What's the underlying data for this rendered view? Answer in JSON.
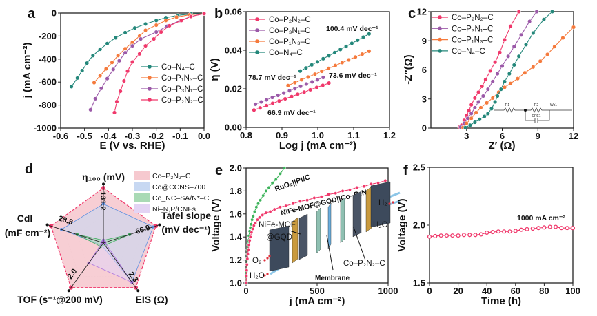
{
  "figure": {
    "panel_labels": [
      "a",
      "b",
      "c",
      "d",
      "e",
      "f"
    ]
  },
  "colors": {
    "Co–P₂N₂–C": "#f0386b",
    "Co–P₃N₁–C": "#9b59a8",
    "Co–P₁N₃–C": "#f57a3c",
    "Co–N₄–C": "#23877a",
    "RuO₂||Pt/C": "#3cb35a"
  },
  "chart_data": [
    {
      "type": "line",
      "xlabel": "E (V vs. RHE)",
      "ylabel": "j (mA cm⁻²)",
      "xlim": [
        -0.6,
        0.0
      ],
      "ylim": [
        -1000,
        0
      ],
      "xticks": [
        -0.6,
        -0.5,
        -0.4,
        -0.3,
        -0.2,
        -0.1,
        0.0
      ],
      "xtick_labels": [
        "-0.6",
        "-0.5",
        "-0.4",
        "-0.3",
        "-0.2",
        "-0.1",
        "0.0"
      ],
      "yticks": [
        -1000,
        -800,
        -600,
        -400,
        -200,
        0
      ],
      "ytick_labels": [
        "-1000",
        "-800",
        "-600",
        "-400",
        "-200",
        "0"
      ],
      "legend": "right",
      "series": [
        {
          "name": "Co–N₄–C",
          "color": "#23877a",
          "x": [
            -0.555,
            -0.53,
            -0.51,
            -0.49,
            -0.465,
            -0.435,
            -0.405,
            -0.37,
            -0.33,
            -0.29,
            -0.245,
            -0.2,
            -0.16,
            -0.11,
            -0.055,
            0
          ],
          "y": [
            -640,
            -565,
            -500,
            -435,
            -370,
            -315,
            -265,
            -215,
            -170,
            -130,
            -95,
            -65,
            -40,
            -20,
            -8,
            -5
          ]
        },
        {
          "name": "Co–P₁N₃–C",
          "color": "#f57a3c",
          "x": [
            -0.46,
            -0.435,
            -0.41,
            -0.385,
            -0.36,
            -0.33,
            -0.3,
            -0.27,
            -0.245,
            -0.2,
            -0.16,
            -0.115,
            -0.06,
            0
          ],
          "y": [
            -605,
            -545,
            -485,
            -430,
            -370,
            -310,
            -255,
            -200,
            -150,
            -105,
            -65,
            -35,
            -15,
            -5
          ]
        },
        {
          "name": "Co–P₃N₁–C",
          "color": "#9b59a8",
          "x": [
            -0.475,
            -0.455,
            -0.43,
            -0.405,
            -0.38,
            -0.355,
            -0.33,
            -0.3,
            -0.265,
            -0.2,
            -0.155,
            -0.1,
            -0.055,
            0
          ],
          "y": [
            -840,
            -745,
            -655,
            -570,
            -490,
            -415,
            -345,
            -285,
            -225,
            -165,
            -115,
            -65,
            -30,
            -5
          ]
        },
        {
          "name": "Co–P₂N₂–C",
          "color": "#f0386b",
          "x": [
            -0.375,
            -0.365,
            -0.35,
            -0.335,
            -0.32,
            -0.3,
            -0.27,
            -0.245,
            -0.21,
            -0.18,
            -0.145,
            -0.095,
            -0.055,
            0
          ],
          "y": [
            -865,
            -770,
            -680,
            -590,
            -505,
            -425,
            -355,
            -285,
            -225,
            -165,
            -110,
            -65,
            -30,
            -5
          ]
        }
      ]
    },
    {
      "type": "line",
      "xlabel": "Log j (mA cm⁻²)",
      "ylabel": "η (V)",
      "xlim": [
        0.8,
        1.2
      ],
      "ylim": [
        0.0,
        0.06
      ],
      "xticks": [
        0.8,
        0.9,
        1.0,
        1.1,
        1.2
      ],
      "xtick_labels": [
        "0.8",
        "0.9",
        "1.0",
        "1.1",
        "1.2"
      ],
      "yticks": [
        0,
        0.02,
        0.04,
        0.06
      ],
      "ytick_labels": [
        "0.00",
        "0.02",
        "0.04",
        "0.06"
      ],
      "legend": "top-left",
      "series": [
        {
          "name": "Co–P₂N₂–C",
          "color": "#f0386b",
          "x": [
            0.822,
            0.839,
            0.857,
            0.874,
            0.892,
            0.909,
            0.927,
            0.944,
            0.962,
            0.979,
            0.997,
            1.014,
            1.031
          ],
          "y": [
            0.009,
            0.0101,
            0.0113,
            0.0125,
            0.0137,
            0.0148,
            0.016,
            0.0172,
            0.0183,
            0.0195,
            0.0207,
            0.0218,
            0.023
          ]
        },
        {
          "name": "Co–P₃N₁–C",
          "color": "#9b59a8",
          "x": [
            0.826,
            0.842,
            0.857,
            0.873,
            0.889,
            0.905,
            0.921,
            0.936,
            0.952,
            0.968,
            0.984,
            0.999,
            1.015
          ],
          "y": [
            0.012,
            0.0132,
            0.0143,
            0.0155,
            0.0166,
            0.0178,
            0.019,
            0.0201,
            0.0213,
            0.0225,
            0.0236,
            0.0247,
            0.0259
          ]
        },
        {
          "name": "Co–P₁N₃–C",
          "color": "#f57a3c",
          "x": [
            0.917,
            0.936,
            0.955,
            0.973,
            0.992,
            1.011,
            1.03,
            1.049,
            1.068,
            1.086,
            1.105,
            1.124,
            1.143
          ],
          "y": [
            0.0217,
            0.0232,
            0.0247,
            0.0261,
            0.0276,
            0.0291,
            0.0306,
            0.0321,
            0.0336,
            0.035,
            0.0365,
            0.038,
            0.0395
          ]
        },
        {
          "name": "Co–N₄–C",
          "color": "#23877a",
          "x": [
            0.951,
            0.967,
            0.983,
            0.999,
            1.015,
            1.031,
            1.047,
            1.063,
            1.079,
            1.095,
            1.111,
            1.127,
            1.143
          ],
          "y": [
            0.0292,
            0.0308,
            0.0324,
            0.034,
            0.0356,
            0.0372,
            0.0388,
            0.0404,
            0.042,
            0.0436,
            0.0452,
            0.0468,
            0.0485
          ]
        }
      ],
      "annotations": [
        {
          "text": "100.4 mV dec⁻¹",
          "color": "#23877a"
        },
        {
          "text": "78.7 mV dec⁻¹",
          "color": "#f57a3c"
        },
        {
          "text": "73.6 mV dec⁻¹",
          "color": "#9b59a8"
        },
        {
          "text": "66.9 mV dec⁻¹",
          "color": "#f0386b"
        }
      ]
    },
    {
      "type": "scatter",
      "xlabel": "Z′ (Ω)",
      "ylabel": "-Z″(Ω)",
      "xlim": [
        0,
        12
      ],
      "ylim": [
        0,
        12
      ],
      "xticks": [
        3,
        6,
        9,
        12
      ],
      "xtick_labels": [
        "3",
        "6",
        "9",
        "12"
      ],
      "yticks": [
        0,
        3,
        6,
        9,
        12
      ],
      "ytick_labels": [
        "0",
        "3",
        "6",
        "9",
        "12"
      ],
      "legend": "top-left",
      "series": [
        {
          "name": "Co–P₂N₂–C",
          "color": "#f0386b",
          "x": [
            2.4,
            2.6,
            2.8,
            3.0,
            3.2,
            3.4,
            3.7,
            4.0,
            4.3,
            4.6,
            5.0,
            5.4,
            5.8,
            6.2,
            6.7,
            7.4
          ],
          "y": [
            0.1,
            0.3,
            0.8,
            1.3,
            1.8,
            2.4,
            3.1,
            3.7,
            4.3,
            5.0,
            5.9,
            6.8,
            7.8,
            9.1,
            10.5,
            12
          ]
        },
        {
          "name": "Co–P₃N₁–C",
          "color": "#9b59a8",
          "x": [
            2.5,
            2.8,
            3.1,
            3.4,
            3.7,
            4.0,
            4.4,
            4.8,
            5.2,
            5.6,
            6.0,
            6.5,
            7.0,
            7.6,
            8.3,
            8.9
          ],
          "y": [
            0.1,
            0.5,
            1.0,
            1.5,
            2.1,
            2.7,
            3.3,
            4.0,
            4.8,
            5.6,
            6.4,
            7.4,
            8.4,
            9.6,
            11.0,
            12
          ]
        },
        {
          "name": "Co–P₁N₃–C",
          "color": "#f57a3c",
          "x": [
            2.7,
            3.0,
            3.4,
            3.8,
            4.2,
            4.7,
            5.2,
            5.7,
            6.2,
            6.7,
            7.3,
            7.9,
            8.6,
            9.2,
            9.8,
            10.4,
            11.1,
            12
          ],
          "y": [
            0.05,
            0.5,
            1.0,
            1.6,
            2.1,
            2.6,
            3.1,
            3.7,
            4.2,
            4.6,
            5.1,
            5.7,
            6.3,
            6.9,
            7.6,
            8.4,
            9.3,
            10.4
          ]
        },
        {
          "name": "Co–N₄–C",
          "color": "#23877a",
          "x": [
            2.9,
            3.3,
            3.7,
            4.1,
            4.5,
            4.8,
            5.1,
            5.4,
            5.6,
            5.9,
            6.2,
            6.6,
            7.0,
            7.4,
            8.0,
            8.6,
            9.5,
            10.2
          ],
          "y": [
            0.05,
            0.3,
            0.6,
            0.9,
            1.2,
            1.5,
            2.0,
            2.7,
            3.3,
            4.0,
            4.8,
            5.6,
            6.5,
            7.4,
            8.6,
            9.8,
            11.2,
            12
          ]
        }
      ],
      "inset_circuit": {
        "labels": [
          "R1",
          "R2",
          "CPE1",
          "Wo1"
        ]
      }
    },
    {
      "type": "radar",
      "axes": [
        {
          "label": [
            "η₁₀₀ (mV)"
          ],
          "value_label": "131.2"
        },
        {
          "label": [
            "Tafel slope",
            "(mV dec⁻¹)"
          ],
          "value_label": "66.9"
        },
        {
          "label": [
            "EIS (Ω)"
          ],
          "value_label": "2.3"
        },
        {
          "label": [
            "TOF (s⁻¹@200 mV)"
          ],
          "value_label": "2.0"
        },
        {
          "label": [
            "Cdl",
            "(mF cm⁻²)"
          ],
          "value_label": "28.8"
        }
      ],
      "legend": "top-right",
      "series": [
        {
          "name": "Co–P₂N₂–C",
          "color": "#f0386b",
          "fill": "#f6c9cf",
          "relative_values": [
            1,
            1,
            1,
            1,
            1
          ]
        },
        {
          "name": "Co@CCNS–700",
          "color": "#5b8fe0",
          "fill": "#c7d8f2",
          "relative_values": [
            0.71,
            0.95,
            0.88,
            0.05,
            0.8
          ]
        },
        {
          "name": "Co_NC–SA/N*–C",
          "color": "#3aa95c",
          "fill": "#a9dab5",
          "relative_values": [
            0.05,
            0.5,
            0.05,
            0.08,
            0.5
          ]
        },
        {
          "name": "Ni–N,P/CNFs",
          "color": "#a86ee0",
          "fill": "#e3d4f4",
          "relative_values": [
            0.05,
            0.03,
            0.88,
            0.45,
            0.03
          ]
        }
      ]
    },
    {
      "type": "line",
      "xlabel": "j (mA cm⁻²)",
      "ylabel": "Voltage (V)",
      "xlim": [
        0,
        1000
      ],
      "ylim": [
        1.0,
        2.0
      ],
      "xticks": [
        0,
        500,
        1000
      ],
      "xtick_labels": [
        "0",
        "500",
        "1000"
      ],
      "yticks": [
        1.0,
        1.2,
        1.4,
        1.6,
        1.8,
        2.0
      ],
      "ytick_labels": [
        "1.0",
        "1.2",
        "1.4",
        "1.6",
        "1.8",
        "2.0"
      ],
      "series": [
        {
          "name": "RuO₂||Pt/C",
          "color": "#3cb35a",
          "x": [
            0,
            1,
            2,
            4,
            6,
            8,
            10,
            13,
            16,
            20,
            25,
            30,
            35,
            42,
            50,
            60,
            72,
            85,
            100,
            120,
            140,
            160,
            185,
            210,
            240,
            270
          ],
          "y": [
            1.0,
            1.05,
            1.1,
            1.16,
            1.21,
            1.25,
            1.29,
            1.33,
            1.37,
            1.41,
            1.45,
            1.48,
            1.51,
            1.55,
            1.58,
            1.62,
            1.66,
            1.69,
            1.72,
            1.76,
            1.8,
            1.83,
            1.87,
            1.9,
            1.95,
            2.0
          ]
        },
        {
          "name": "NiFe-MOF@GQD||Co–P₂N₂–C",
          "color": "#f0386b",
          "x": [
            0,
            2,
            4,
            6,
            9,
            12,
            16,
            20,
            25,
            30,
            38,
            46,
            55,
            65,
            80,
            95,
            115,
            140,
            170,
            200,
            240,
            280,
            330,
            380,
            430,
            480,
            530,
            580,
            630,
            680,
            730,
            780,
            830,
            880,
            930,
            980
          ],
          "y": [
            1.0,
            1.06,
            1.11,
            1.16,
            1.21,
            1.25,
            1.29,
            1.33,
            1.37,
            1.4,
            1.44,
            1.47,
            1.5,
            1.52,
            1.55,
            1.57,
            1.59,
            1.61,
            1.62,
            1.64,
            1.66,
            1.67,
            1.69,
            1.71,
            1.72,
            1.74,
            1.75,
            1.77,
            1.78,
            1.8,
            1.81,
            1.83,
            1.84,
            1.86,
            1.87,
            1.89
          ]
        }
      ],
      "annotations": [
        {
          "text": "RuO₂||Pt/C",
          "color": "#111111"
        },
        {
          "text": "NiFe-MOF@GQD||Co–P₂N₂–C",
          "color": "#111111"
        }
      ],
      "inset_labels": {
        "anode_line1": "NiFe-MOF",
        "anode_line2": "@GQD",
        "membrane": "Membrane",
        "cathode": "Co–P₂N₂–C",
        "h2": "H₂",
        "h2o_out": "H₂O",
        "o2": "O₂",
        "h2o_in": "H₂O"
      }
    },
    {
      "type": "scatter",
      "xlabel": "Time (h)",
      "ylabel": "Voltage (V)",
      "xlim": [
        0,
        100
      ],
      "ylim": [
        1.5,
        2.5
      ],
      "xticks": [
        0,
        20,
        40,
        60,
        80,
        100
      ],
      "xtick_labels": [
        "0",
        "20",
        "40",
        "60",
        "80",
        "100"
      ],
      "yticks": [
        1.5,
        2.0,
        2.5
      ],
      "ytick_labels": [
        "1.5",
        "2.0",
        "2.5"
      ],
      "series": [
        {
          "color": "#f0386b",
          "x": [
            0,
            4,
            8,
            12,
            16,
            20,
            24,
            28,
            32,
            36,
            40,
            44,
            48,
            52,
            56,
            60,
            64,
            68,
            72,
            76,
            80,
            84,
            88,
            92,
            96,
            100
          ],
          "y": [
            1.9,
            1.905,
            1.91,
            1.91,
            1.91,
            1.91,
            1.915,
            1.915,
            1.915,
            1.92,
            1.935,
            1.94,
            1.945,
            1.945,
            1.945,
            1.95,
            1.96,
            1.965,
            1.97,
            1.975,
            1.98,
            1.985,
            1.985,
            1.975,
            1.975,
            1.975
          ]
        }
      ],
      "annotations": [
        {
          "text": "1000 mA cm⁻²",
          "color": "#111111"
        }
      ]
    }
  ]
}
